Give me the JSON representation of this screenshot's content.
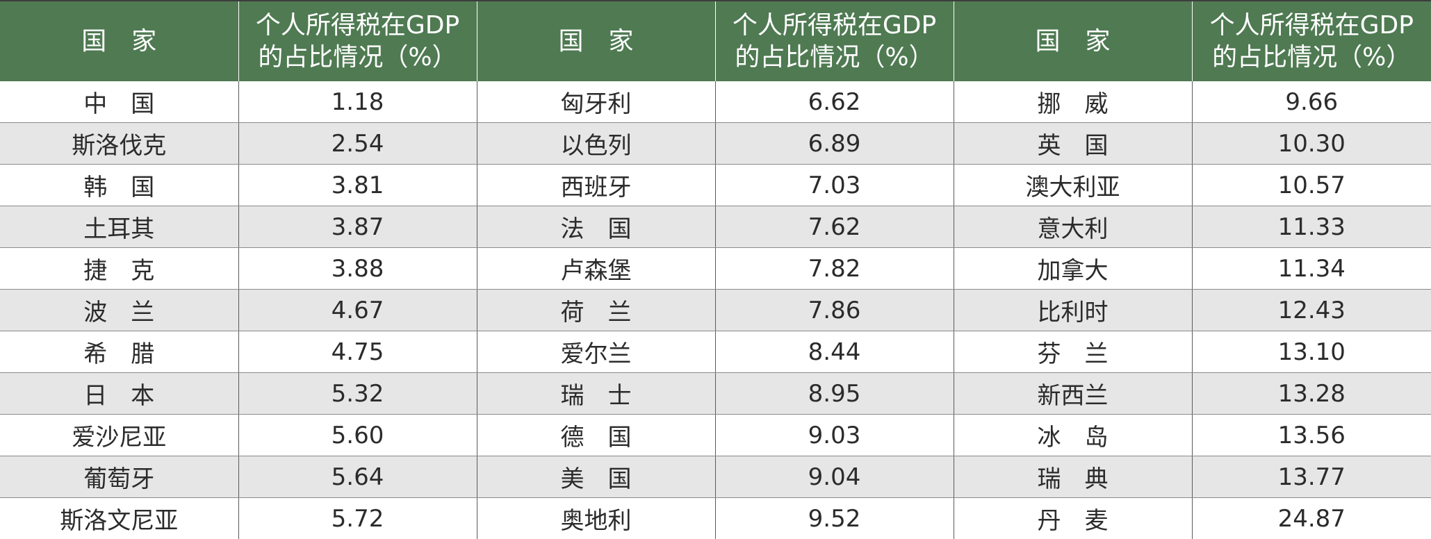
{
  "header": {
    "col_country": "国　家",
    "col_ratio": "个人所得税在GDP\n的占比情况（%）"
  },
  "rows": [
    [
      {
        "country": "中　国",
        "value": "1.18"
      },
      {
        "country": "匈牙利",
        "value": "6.62"
      },
      {
        "country": "挪　威",
        "value": "9.66"
      }
    ],
    [
      {
        "country": "斯洛伐克",
        "value": "2.54"
      },
      {
        "country": "以色列",
        "value": "6.89"
      },
      {
        "country": "英　国",
        "value": "10.30"
      }
    ],
    [
      {
        "country": "韩　国",
        "value": "3.81"
      },
      {
        "country": "西班牙",
        "value": "7.03"
      },
      {
        "country": "澳大利亚",
        "value": "10.57"
      }
    ],
    [
      {
        "country": "土耳其",
        "value": "3.87"
      },
      {
        "country": "法　国",
        "value": "7.62"
      },
      {
        "country": "意大利",
        "value": "11.33"
      }
    ],
    [
      {
        "country": "捷　克",
        "value": "3.88"
      },
      {
        "country": "卢森堡",
        "value": "7.82"
      },
      {
        "country": "加拿大",
        "value": "11.34"
      }
    ],
    [
      {
        "country": "波　兰",
        "value": "4.67"
      },
      {
        "country": "荷　兰",
        "value": "7.86"
      },
      {
        "country": "比利时",
        "value": "12.43"
      }
    ],
    [
      {
        "country": "希　腊",
        "value": "4.75"
      },
      {
        "country": "爱尔兰",
        "value": "8.44"
      },
      {
        "country": "芬　兰",
        "value": "13.10"
      }
    ],
    [
      {
        "country": "日　本",
        "value": "5.32"
      },
      {
        "country": "瑞　士",
        "value": "8.95"
      },
      {
        "country": "新西兰",
        "value": "13.28"
      }
    ],
    [
      {
        "country": "爱沙尼亚",
        "value": "5.60"
      },
      {
        "country": "德　国",
        "value": "9.03"
      },
      {
        "country": "冰　岛",
        "value": "13.56"
      }
    ],
    [
      {
        "country": "葡萄牙",
        "value": "5.64"
      },
      {
        "country": "美　国",
        "value": "9.04"
      },
      {
        "country": "瑞　典",
        "value": "13.77"
      }
    ],
    [
      {
        "country": "斯洛文尼亚",
        "value": "5.72"
      },
      {
        "country": "奥地利",
        "value": "9.52"
      },
      {
        "country": "丹　麦",
        "value": "24.87"
      }
    ]
  ]
}
